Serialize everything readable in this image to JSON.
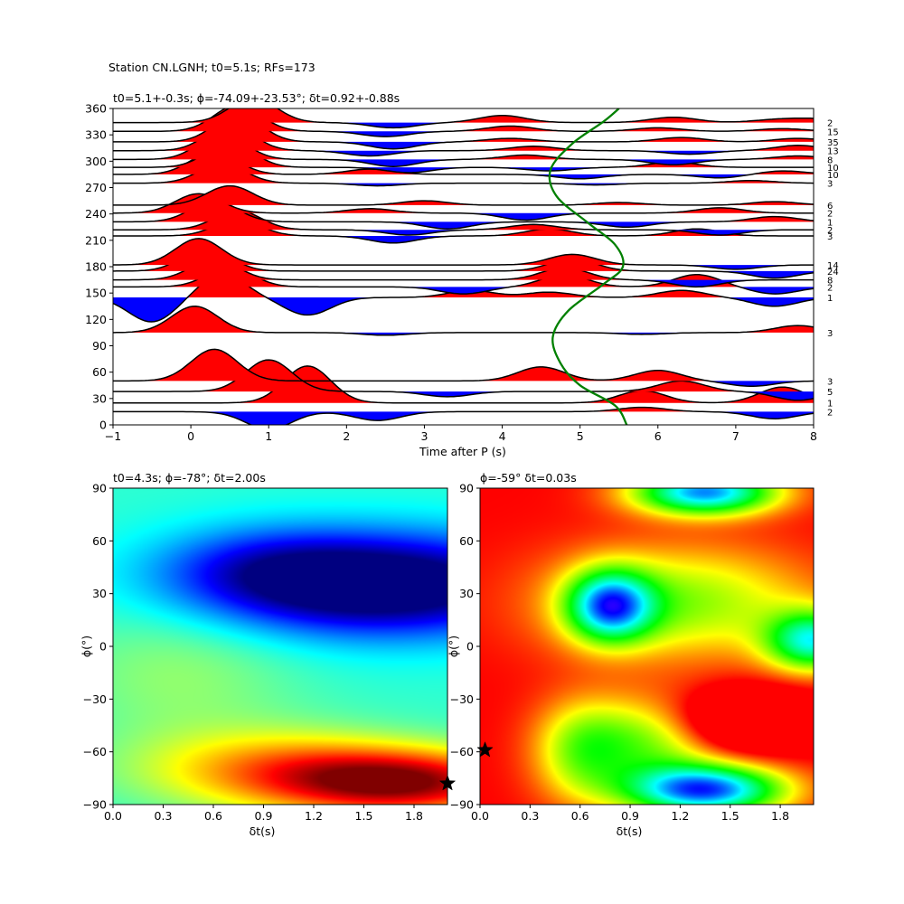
{
  "figure": {
    "suptitle": "Station CN.LGNH; t0=5.1s; RFs=173"
  },
  "chart_data": [
    {
      "type": "line",
      "title": "t0=5.1+-0.3s; ϕ=-74.09+-23.53°; δt=0.92+-0.88s",
      "xlabel": "Time after P (s)",
      "ylabel": "",
      "xlim": [
        -1,
        8
      ],
      "ylim": [
        0,
        360
      ],
      "xticks": [
        -1,
        0,
        1,
        2,
        3,
        4,
        5,
        6,
        7,
        8
      ],
      "yticks": [
        0,
        30,
        60,
        90,
        120,
        150,
        180,
        210,
        240,
        270,
        300,
        330,
        360
      ],
      "xticklabels": [
        "−1",
        "0",
        "1",
        "2",
        "3",
        "4",
        "5",
        "6",
        "7",
        "8"
      ],
      "yticklabels": [
        "0",
        "30",
        "60",
        "90",
        "120",
        "150",
        "180",
        "210",
        "240",
        "270",
        "300",
        "330",
        "360"
      ],
      "fill_colors": {
        "positive": "#ff0000",
        "negative": "#0000ff"
      },
      "curve_color": "#008000",
      "traces": [
        {
          "baz": 15,
          "count": "2",
          "peaks": [
            [
              1.0,
              -20
            ],
            [
              2.4,
              -10
            ],
            [
              5.8,
              5
            ],
            [
              7.5,
              -8
            ]
          ]
        },
        {
          "baz": 25,
          "count": "1",
          "peaks": [
            [
              1.5,
              42
            ],
            [
              5.8,
              14
            ],
            [
              7.6,
              18
            ]
          ]
        },
        {
          "baz": 38,
          "count": "5",
          "peaks": [
            [
              1.0,
              36
            ],
            [
              3.3,
              -6
            ],
            [
              6.3,
              12
            ],
            [
              7.8,
              -10
            ]
          ]
        },
        {
          "baz": 50,
          "count": "3",
          "peaks": [
            [
              0.3,
              36
            ],
            [
              4.5,
              16
            ],
            [
              6.0,
              12
            ],
            [
              7.2,
              -6
            ]
          ]
        },
        {
          "baz": 105,
          "count": "3",
          "peaks": [
            [
              0.05,
              30
            ],
            [
              2.5,
              -3
            ],
            [
              5.8,
              -2
            ],
            [
              7.8,
              8
            ]
          ]
        },
        {
          "baz": 145,
          "count": "1",
          "peaks": [
            [
              -0.5,
              -28
            ],
            [
              0.4,
              26
            ],
            [
              1.5,
              -20
            ],
            [
              3.6,
              8
            ],
            [
              4.6,
              6
            ],
            [
              6.3,
              8
            ],
            [
              7.5,
              -10
            ]
          ]
        },
        {
          "baz": 157,
          "count": "2",
          "peaks": [
            [
              0.5,
              22
            ],
            [
              3.5,
              -8
            ],
            [
              4.8,
              14
            ],
            [
              6.5,
              14
            ],
            [
              7.5,
              -8
            ]
          ]
        },
        {
          "baz": 165,
          "count": "8",
          "peaks": [
            [
              0.3,
              24
            ],
            [
              4.8,
              14
            ],
            [
              6.5,
              -8
            ]
          ]
        },
        {
          "baz": 175,
          "count": "24",
          "peaks": [
            [
              0.2,
              28
            ],
            [
              4.9,
              14
            ],
            [
              7.5,
              -8
            ]
          ]
        },
        {
          "baz": 182,
          "count": "14",
          "peaks": [
            [
              0.1,
              30
            ],
            [
              4.9,
              12
            ],
            [
              7.0,
              -5
            ]
          ]
        },
        {
          "baz": 215,
          "count": "3",
          "peaks": [
            [
              0.6,
              18
            ],
            [
              2.6,
              -8
            ],
            [
              4.6,
              8
            ],
            [
              6.5,
              8
            ]
          ]
        },
        {
          "baz": 222,
          "count": "2",
          "peaks": [
            [
              0.6,
              22
            ],
            [
              2.8,
              -6
            ],
            [
              4.4,
              6
            ],
            [
              6.8,
              -6
            ]
          ]
        },
        {
          "baz": 231,
          "count": "1",
          "peaks": [
            [
              0.3,
              24
            ],
            [
              3.3,
              -8
            ],
            [
              5.6,
              -6
            ],
            [
              7.5,
              6
            ]
          ]
        },
        {
          "baz": 241,
          "count": "2",
          "peaks": [
            [
              0.1,
              22
            ],
            [
              2.3,
              5
            ],
            [
              4.3,
              -8
            ],
            [
              6.8,
              6
            ]
          ]
        },
        {
          "baz": 250,
          "count": "6",
          "peaks": [
            [
              0.5,
              22
            ],
            [
              3.0,
              5
            ],
            [
              5.5,
              3
            ],
            [
              7.5,
              4
            ]
          ]
        },
        {
          "baz": 275,
          "count": "3",
          "peaks": [
            [
              0.4,
              22
            ],
            [
              2.4,
              -3
            ],
            [
              5.2,
              -2
            ],
            [
              7.2,
              3
            ]
          ]
        },
        {
          "baz": 285,
          "count": "10",
          "peaks": [
            [
              0.3,
              26
            ],
            [
              2.3,
              6
            ],
            [
              5.0,
              -5
            ],
            [
              6.8,
              -4
            ],
            [
              7.6,
              4
            ]
          ]
        },
        {
          "baz": 293,
          "count": "10",
          "peaks": [
            [
              0.5,
              28
            ],
            [
              2.8,
              -6
            ],
            [
              4.6,
              -4
            ],
            [
              6.2,
              6
            ]
          ]
        },
        {
          "baz": 302,
          "count": "8",
          "peaks": [
            [
              0.4,
              30
            ],
            [
              2.6,
              -8
            ],
            [
              4.3,
              5
            ],
            [
              6.2,
              -6
            ],
            [
              7.8,
              4
            ]
          ]
        },
        {
          "baz": 312,
          "count": "13",
          "peaks": [
            [
              0.5,
              30
            ],
            [
              2.3,
              -6
            ],
            [
              4.4,
              5
            ],
            [
              6.4,
              -4
            ],
            [
              7.8,
              6
            ]
          ]
        },
        {
          "baz": 322,
          "count": "35",
          "peaks": [
            [
              0.6,
              32
            ],
            [
              2.6,
              -8
            ],
            [
              4.1,
              4
            ],
            [
              6.3,
              5
            ],
            [
              7.8,
              4
            ]
          ]
        },
        {
          "baz": 334,
          "count": "15",
          "peaks": [
            [
              0.6,
              30
            ],
            [
              2.5,
              -6
            ],
            [
              4.1,
              6
            ],
            [
              6.0,
              4
            ],
            [
              7.6,
              3
            ]
          ]
        },
        {
          "baz": 344,
          "count": "2",
          "peaks": [
            [
              0.8,
              28
            ],
            [
              2.6,
              -6
            ],
            [
              4.0,
              8
            ],
            [
              6.2,
              6
            ],
            [
              7.5,
              3
            ],
            [
              8.0,
              4
            ]
          ]
        }
      ],
      "green_curve": [
        [
          5.6,
          0
        ],
        [
          5.45,
          22
        ],
        [
          5.0,
          45
        ],
        [
          4.75,
          70
        ],
        [
          4.65,
          100
        ],
        [
          4.85,
          130
        ],
        [
          5.3,
          160
        ],
        [
          5.55,
          180
        ],
        [
          5.45,
          205
        ],
        [
          5.1,
          230
        ],
        [
          4.7,
          260
        ],
        [
          4.62,
          290
        ],
        [
          4.9,
          320
        ],
        [
          5.3,
          345
        ],
        [
          5.5,
          360
        ]
      ]
    },
    {
      "type": "heatmap",
      "title": "t0=4.3s; ϕ=-78°; δt=2.00s",
      "xlabel": "δt(s)",
      "ylabel": "ϕ(°)",
      "xlim": [
        0,
        2.0
      ],
      "ylim": [
        -90,
        90
      ],
      "xticks": [
        0.0,
        0.3,
        0.6,
        0.9,
        1.2,
        1.5,
        1.8
      ],
      "yticks": [
        -90,
        -60,
        -30,
        0,
        30,
        60,
        90
      ],
      "xticklabels": [
        "0.0",
        "0.3",
        "0.6",
        "0.9",
        "1.2",
        "1.5",
        "1.8"
      ],
      "yticklabels": [
        "−90",
        "−60",
        "−30",
        "0",
        "30",
        "60",
        "90"
      ],
      "colormap": "jet",
      "marker": {
        "x": 2.0,
        "y": -78,
        "symbol": "star"
      },
      "blobs": [
        {
          "x": 1.6,
          "y": 35,
          "sx": 0.75,
          "sy": 20,
          "amp": -0.55
        },
        {
          "x": 0.9,
          "y": 45,
          "sx": 0.45,
          "sy": 16,
          "amp": -0.15
        },
        {
          "x": 1.75,
          "y": -78,
          "sx": 0.55,
          "sy": 13,
          "amp": 0.52
        },
        {
          "x": 1.0,
          "y": -70,
          "sx": 0.6,
          "sy": 16,
          "amp": 0.28
        },
        {
          "x": 0.4,
          "y": -15,
          "sx": 0.5,
          "sy": 30,
          "amp": 0.1
        }
      ]
    },
    {
      "type": "heatmap",
      "title": "ϕ=-59° δt=0.03s",
      "xlabel": "δt(s)",
      "ylabel": "ϕ(°)",
      "xlim": [
        0,
        2.0
      ],
      "ylim": [
        -90,
        90
      ],
      "xticks": [
        0.0,
        0.3,
        0.6,
        0.9,
        1.2,
        1.5,
        1.8
      ],
      "yticks": [
        -90,
        -60,
        -30,
        0,
        30,
        60,
        90
      ],
      "xticklabels": [
        "0.0",
        "0.3",
        "0.6",
        "0.9",
        "1.2",
        "1.5",
        "1.8"
      ],
      "yticklabels": [
        "−90",
        "−60",
        "−30",
        "0",
        "30",
        "60",
        "90"
      ],
      "colormap": "hsv",
      "marker": {
        "x": 0.03,
        "y": -59,
        "symbol": "star"
      },
      "blobs": [
        {
          "x": 0.78,
          "y": 23,
          "sx": 0.18,
          "sy": 14,
          "amp": -0.62
        },
        {
          "x": 1.2,
          "y": 25,
          "sx": 0.55,
          "sy": 22,
          "amp": -0.3
        },
        {
          "x": 1.35,
          "y": -82,
          "sx": 0.33,
          "sy": 10,
          "amp": -0.75
        },
        {
          "x": 1.35,
          "y": 88,
          "sx": 0.3,
          "sy": 9,
          "amp": -0.7
        },
        {
          "x": 2.0,
          "y": 3,
          "sx": 0.2,
          "sy": 12,
          "amp": -0.55
        },
        {
          "x": 1.0,
          "y": -55,
          "sx": 0.3,
          "sy": 18,
          "amp": -0.3
        },
        {
          "x": 1.6,
          "y": -42,
          "sx": 0.3,
          "sy": 12,
          "amp": 0.3
        },
        {
          "x": 0.6,
          "y": -60,
          "sx": 0.2,
          "sy": 20,
          "amp": -0.25
        }
      ]
    }
  ]
}
